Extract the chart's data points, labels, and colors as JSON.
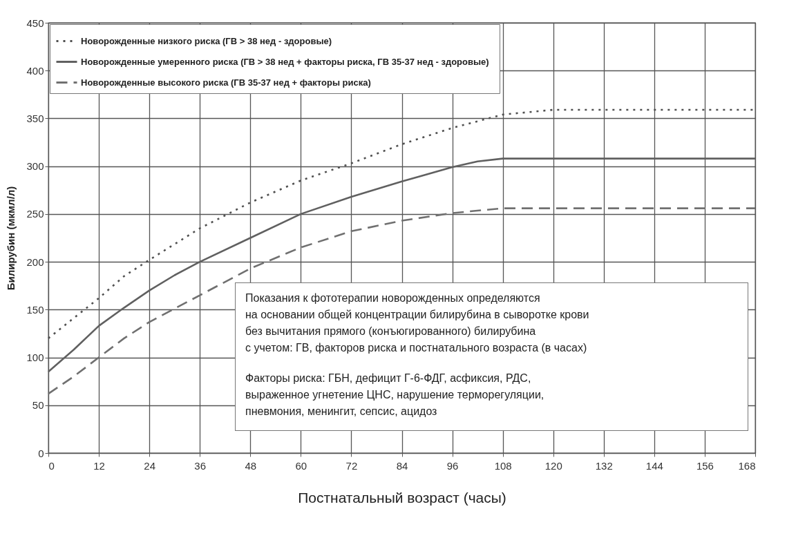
{
  "chart_data": {
    "type": "line",
    "xlabel": "Постнатальный возраст (часы)",
    "ylabel": "Билирубин (мкмл/л)",
    "xlim": [
      0,
      168
    ],
    "xticks": [
      0,
      12,
      24,
      36,
      48,
      60,
      72,
      84,
      96,
      108,
      120,
      132,
      144,
      156,
      168
    ],
    "ylim": [
      0,
      450
    ],
    "yticks": [
      0,
      50,
      100,
      150,
      200,
      250,
      300,
      350,
      400,
      450
    ],
    "grid": true,
    "legend": "top left",
    "marker": "none",
    "series": [
      {
        "name": "Новорожденные низкого риска      (ГВ >  38  нед - здоровые)",
        "color": "#505050",
        "line_style": "dotted",
        "x": [
          0,
          12,
          18,
          24,
          36,
          48,
          60,
          72,
          84,
          96,
          108,
          120,
          168
        ],
        "values": [
          120,
          162,
          185,
          202,
          235,
          262,
          285,
          303,
          323,
          340,
          354,
          359,
          359
        ]
      },
      {
        "name": "Новорожденные умеренного риска (ГВ >  38  нед + факторы риска, ГВ 35-37 нед - здоровые)",
        "color": "#606060",
        "line_style": "solid",
        "x": [
          0,
          6,
          12,
          18,
          24,
          30,
          36,
          48,
          60,
          72,
          84,
          96,
          102,
          108,
          168
        ],
        "values": [
          85,
          108,
          133,
          152,
          170,
          186,
          200,
          225,
          250,
          268,
          284,
          299,
          305,
          308,
          308
        ]
      },
      {
        "name": "Новорожденные высокого риска     (ГВ 35-37 нед + факторы риска)",
        "color": "#707070",
        "line_style": "dashed",
        "x": [
          0,
          6,
          12,
          18,
          24,
          36,
          48,
          60,
          72,
          84,
          96,
          108,
          168
        ],
        "values": [
          62,
          80,
          100,
          120,
          137,
          165,
          193,
          215,
          232,
          243,
          251,
          256,
          256
        ]
      }
    ],
    "annotations": [
      "Показания к фототерапии новорожденных определяются",
      "на основании общей концентрации билирубина в сыворотке крови",
      "без вычитания прямого (конъюгированного) билирубина",
      "с учетом: ГВ, факторов риска и постнатального возраста (в часах)",
      "Факторы риска: ГБН, дефицит Г-6-ФДГ, асфиксия, РДС,",
      "выраженное угнетение ЦНС, нарушение терморегуляции,",
      "пневмония,  менингит, сепсис, ацидоз"
    ]
  }
}
